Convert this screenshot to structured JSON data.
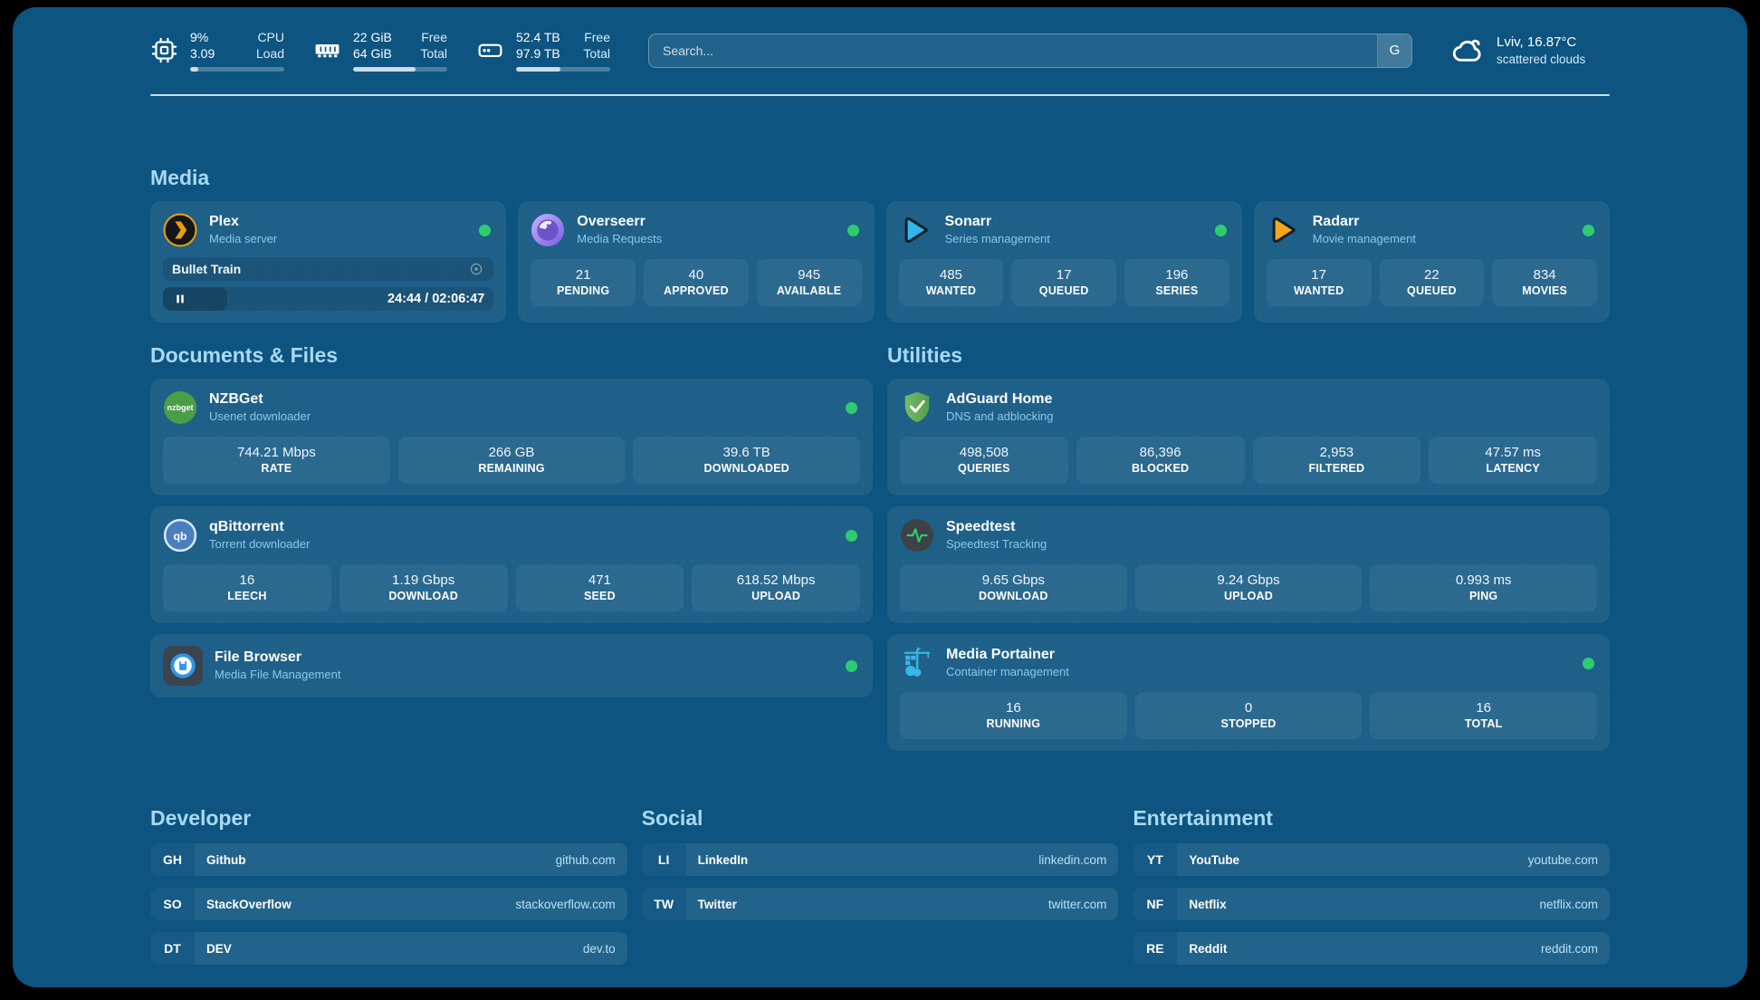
{
  "header": {
    "system_stats": [
      {
        "name": "cpu",
        "values": [
          "9%",
          "3.09"
        ],
        "labels": [
          "CPU",
          "Load"
        ],
        "progress_pct": 9
      },
      {
        "name": "memory",
        "values": [
          "22 GiB",
          "64 GiB"
        ],
        "labels": [
          "Free",
          "Total"
        ],
        "progress_pct": 66
      },
      {
        "name": "storage",
        "values": [
          "52.4 TB",
          "97.9 TB"
        ],
        "labels": [
          "Free",
          "Total"
        ],
        "progress_pct": 47
      }
    ],
    "search": {
      "placeholder": "Search...",
      "engine_button": "G"
    },
    "weather": {
      "location": "Lviv, 16.87°C",
      "condition": "scattered clouds"
    }
  },
  "sections": {
    "media": {
      "title": "Media"
    },
    "documents": {
      "title": "Documents & Files"
    },
    "utilities": {
      "title": "Utilities"
    }
  },
  "apps": {
    "plex": {
      "name": "Plex",
      "description": "Media server",
      "status": "online",
      "now_playing": {
        "title": "Bullet Train",
        "time_display": "24:44 / 02:06:47",
        "progress_pct": 19.5
      }
    },
    "overseerr": {
      "name": "Overseerr",
      "description": "Media Requests",
      "status": "online",
      "stats": [
        {
          "value": "21",
          "label": "PENDING"
        },
        {
          "value": "40",
          "label": "APPROVED"
        },
        {
          "value": "945",
          "label": "AVAILABLE"
        }
      ]
    },
    "sonarr": {
      "name": "Sonarr",
      "description": "Series management",
      "status": "online",
      "stats": [
        {
          "value": "485",
          "label": "WANTED"
        },
        {
          "value": "17",
          "label": "QUEUED"
        },
        {
          "value": "196",
          "label": "SERIES"
        }
      ]
    },
    "radarr": {
      "name": "Radarr",
      "description": "Movie management",
      "status": "online",
      "stats": [
        {
          "value": "17",
          "label": "WANTED"
        },
        {
          "value": "22",
          "label": "QUEUED"
        },
        {
          "value": "834",
          "label": "MOVIES"
        }
      ]
    },
    "nzbget": {
      "name": "NZBGet",
      "description": "Usenet downloader",
      "status": "online",
      "stats": [
        {
          "value": "744.21 Mbps",
          "label": "RATE"
        },
        {
          "value": "266 GB",
          "label": "REMAINING"
        },
        {
          "value": "39.6 TB",
          "label": "DOWNLOADED"
        }
      ]
    },
    "qbittorrent": {
      "name": "qBittorrent",
      "description": "Torrent downloader",
      "status": "online",
      "stats": [
        {
          "value": "16",
          "label": "LEECH"
        },
        {
          "value": "1.19 Gbps",
          "label": "DOWNLOAD"
        },
        {
          "value": "471",
          "label": "SEED"
        },
        {
          "value": "618.52 Mbps",
          "label": "UPLOAD"
        }
      ]
    },
    "filebrowser": {
      "name": "File Browser",
      "description": "Media File Management",
      "status": "online"
    },
    "adguard": {
      "name": "AdGuard Home",
      "description": "DNS and adblocking",
      "stats": [
        {
          "value": "498,508",
          "label": "QUERIES"
        },
        {
          "value": "86,396",
          "label": "BLOCKED"
        },
        {
          "value": "2,953",
          "label": "FILTERED"
        },
        {
          "value": "47.57 ms",
          "label": "LATENCY"
        }
      ]
    },
    "speedtest": {
      "name": "Speedtest",
      "description": "Speedtest Tracking",
      "stats": [
        {
          "value": "9.65 Gbps",
          "label": "DOWNLOAD"
        },
        {
          "value": "9.24 Gbps",
          "label": "UPLOAD"
        },
        {
          "value": "0.993 ms",
          "label": "PING"
        }
      ]
    },
    "portainer": {
      "name": "Media Portainer",
      "description": "Container management",
      "status": "online",
      "stats": [
        {
          "value": "16",
          "label": "RUNNING"
        },
        {
          "value": "0",
          "label": "STOPPED"
        },
        {
          "value": "16",
          "label": "TOTAL"
        }
      ]
    }
  },
  "bookmarks": [
    {
      "title": "Developer",
      "links": [
        {
          "abbr": "GH",
          "name": "Github",
          "url": "github.com"
        },
        {
          "abbr": "SO",
          "name": "StackOverflow",
          "url": "stackoverflow.com"
        },
        {
          "abbr": "DT",
          "name": "DEV",
          "url": "dev.to"
        }
      ]
    },
    {
      "title": "Social",
      "links": [
        {
          "abbr": "LI",
          "name": "LinkedIn",
          "url": "linkedin.com"
        },
        {
          "abbr": "TW",
          "name": "Twitter",
          "url": "twitter.com"
        }
      ]
    },
    {
      "title": "Entertainment",
      "links": [
        {
          "abbr": "YT",
          "name": "YouTube",
          "url": "youtube.com"
        },
        {
          "abbr": "NF",
          "name": "Netflix",
          "url": "netflix.com"
        },
        {
          "abbr": "RE",
          "name": "Reddit",
          "url": "reddit.com"
        }
      ]
    }
  ],
  "colors": {
    "background": "#0d5480",
    "status_online": "#2ecc71",
    "section_heading": "#a9d9f2",
    "plex_brand": "#e5a00d",
    "overseerr_brand": "#7c5ce0",
    "sonarr_brand": "#2fb9ea",
    "radarr_brand": "#f7a51b",
    "nzbget_brand": "#4a9e46",
    "adguard_brand": "#67b279",
    "qbittorrent_brand": "#4a7fbe",
    "speedtest_accent": "#2ecc71",
    "filebrowser_brand": "#2d96ea",
    "portainer_brand": "#36b7e6"
  }
}
